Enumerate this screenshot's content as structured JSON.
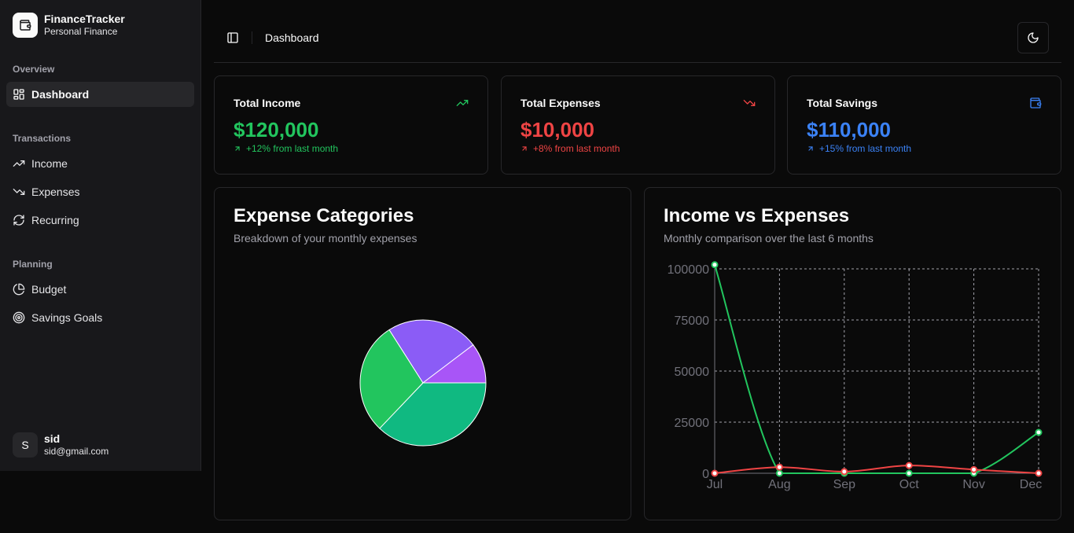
{
  "app": {
    "name": "FinanceTracker",
    "subtitle": "Personal Finance"
  },
  "sidebar": {
    "groups": [
      {
        "label": "Overview",
        "items": [
          {
            "label": "Dashboard",
            "icon": "layout-dashboard-icon",
            "active": true
          }
        ]
      },
      {
        "label": "Transactions",
        "items": [
          {
            "label": "Income",
            "icon": "trending-up-icon"
          },
          {
            "label": "Expenses",
            "icon": "trending-down-icon"
          },
          {
            "label": "Recurring",
            "icon": "refresh-icon"
          }
        ]
      },
      {
        "label": "Planning",
        "items": [
          {
            "label": "Budget",
            "icon": "pie-chart-icon"
          },
          {
            "label": "Savings Goals",
            "icon": "target-icon"
          }
        ]
      }
    ],
    "user": {
      "initial": "S",
      "name": "sid",
      "email": "sid@gmail.com"
    }
  },
  "header": {
    "title": "Dashboard"
  },
  "stats": [
    {
      "title": "Total Income",
      "value": "$120,000",
      "change": "+12% from last month",
      "color": "#22c55e",
      "icon": "trending-up-icon"
    },
    {
      "title": "Total Expenses",
      "value": "$10,000",
      "change": "+8% from last month",
      "color": "#ef4444",
      "icon": "trending-down-icon"
    },
    {
      "title": "Total Savings",
      "value": "$110,000",
      "change": "+15% from last month",
      "color": "#3b82f6",
      "icon": "wallet-icon"
    }
  ],
  "expense_panel": {
    "title": "Expense Categories",
    "subtitle": "Breakdown of your monthly expenses"
  },
  "income_panel": {
    "title": "Income vs Expenses",
    "subtitle": "Monthly comparison over the last 6 months"
  },
  "colors": {
    "income": "#22c55e",
    "expense": "#ef4444"
  },
  "chart_data": [
    {
      "type": "pie",
      "values": [
        36,
        28,
        23,
        10
      ],
      "colors": [
        "#10b981",
        "#22c55e",
        "#8b5cf6",
        "#a855f7"
      ]
    },
    {
      "type": "line",
      "categories": [
        "Jul",
        "Aug",
        "Sep",
        "Oct",
        "Nov",
        "Dec"
      ],
      "series": [
        {
          "values": [
            102000,
            0,
            0,
            0,
            0,
            20000
          ],
          "color": "#22c55e"
        },
        {
          "values": [
            0,
            3000,
            800,
            3800,
            1800,
            0
          ],
          "color": "#ef4444"
        }
      ],
      "y_ticks": [
        0,
        25000,
        50000,
        75000,
        100000
      ],
      "ylim": [
        0,
        100000
      ],
      "grid": true
    }
  ]
}
